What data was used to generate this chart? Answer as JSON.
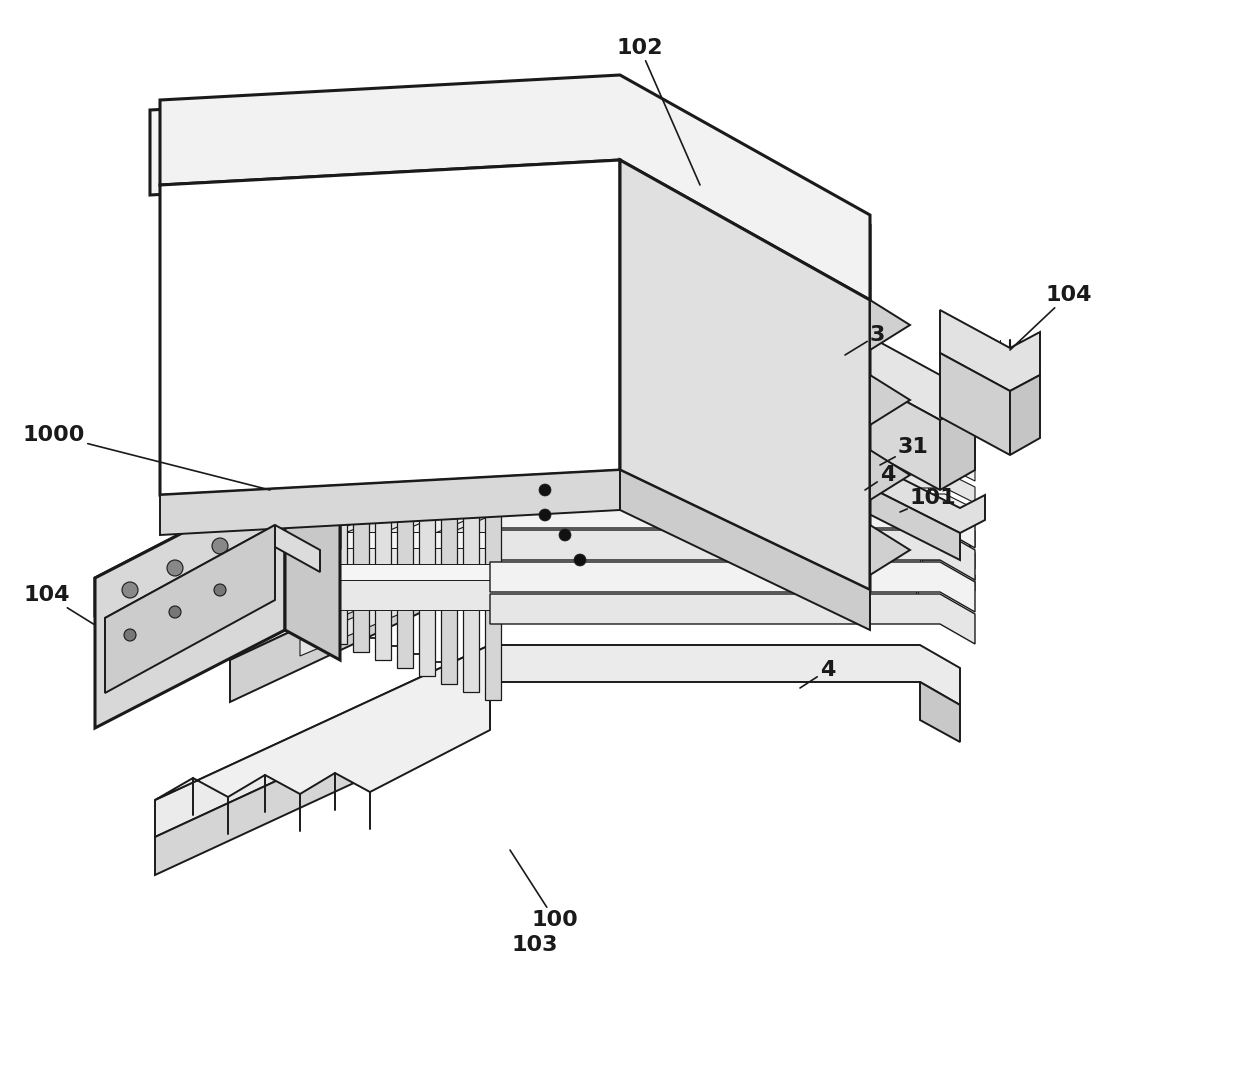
{
  "bg_color": "#ffffff",
  "line_color": "#1a1a1a",
  "lw": 1.4,
  "lw_heavy": 2.2,
  "lw_thin": 0.8,
  "fig_width": 12.4,
  "fig_height": 10.76,
  "label_fontsize": 16,
  "label_fontsize_sm": 14
}
